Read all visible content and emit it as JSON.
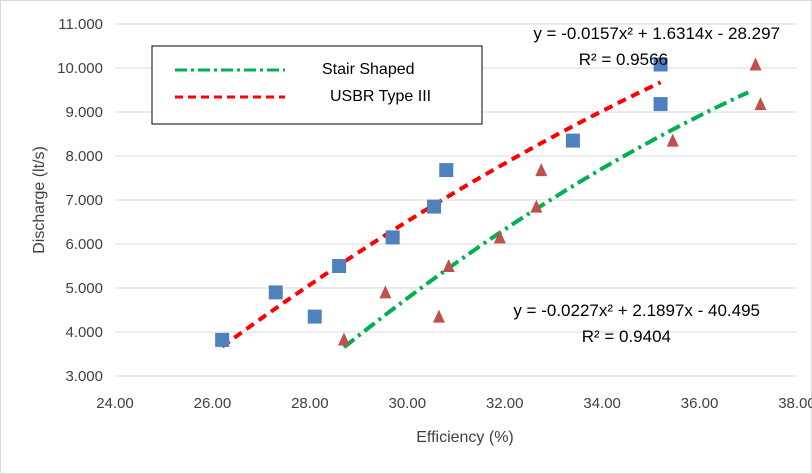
{
  "chart_data": {
    "type": "scatter",
    "xlabel": "Efficiency (%)",
    "ylabel": "Discharge (lt/s)",
    "xlim": [
      24,
      38
    ],
    "ylim": [
      3,
      11
    ],
    "x_ticks": [
      "24.00",
      "26.00",
      "28.00",
      "30.00",
      "32.00",
      "34.00",
      "36.00",
      "38.00"
    ],
    "y_ticks": [
      "3.000",
      "4.000",
      "5.000",
      "6.000",
      "7.000",
      "8.000",
      "9.000",
      "10.000",
      "11.000"
    ],
    "grid": "horizontal",
    "legend_position": "top-left",
    "series": [
      {
        "name": "Stair Shaped",
        "marker": "triangle",
        "color": "#C0504D",
        "points": [
          [
            28.7,
            3.83
          ],
          [
            30.65,
            4.35
          ],
          [
            29.55,
            4.9
          ],
          [
            30.85,
            5.5
          ],
          [
            31.9,
            6.15
          ],
          [
            32.65,
            6.85
          ],
          [
            32.75,
            7.68
          ],
          [
            35.45,
            8.35
          ],
          [
            37.25,
            9.18
          ],
          [
            37.15,
            10.08
          ]
        ],
        "trendline": {
          "type": "polynomial",
          "coefficients": [
            -0.0227,
            2.1897,
            -40.495
          ],
          "x_range": [
            28.7,
            37.0
          ],
          "color": "#00B050",
          "style": "dash-dot",
          "equation": "y = -0.0227x² + 2.1897x - 40.495",
          "r2": "R² = 0.9404"
        }
      },
      {
        "name": "USBR Type III",
        "marker": "square",
        "color": "#4F81BD",
        "points": [
          [
            26.2,
            3.82
          ],
          [
            28.1,
            4.35
          ],
          [
            27.3,
            4.9
          ],
          [
            28.6,
            5.5
          ],
          [
            29.7,
            6.15
          ],
          [
            30.55,
            6.85
          ],
          [
            30.8,
            7.68
          ],
          [
            33.4,
            8.35
          ],
          [
            35.2,
            9.18
          ],
          [
            35.2,
            10.08
          ]
        ],
        "trendline": {
          "type": "polynomial",
          "coefficients": [
            -0.0157,
            1.6314,
            -28.297
          ],
          "x_range": [
            26.2,
            35.2
          ],
          "color": "#FF0000",
          "style": "dash",
          "equation": "y = -0.0157x² + 1.6314x - 28.297",
          "r2": "R² = 0.9566"
        }
      }
    ]
  }
}
